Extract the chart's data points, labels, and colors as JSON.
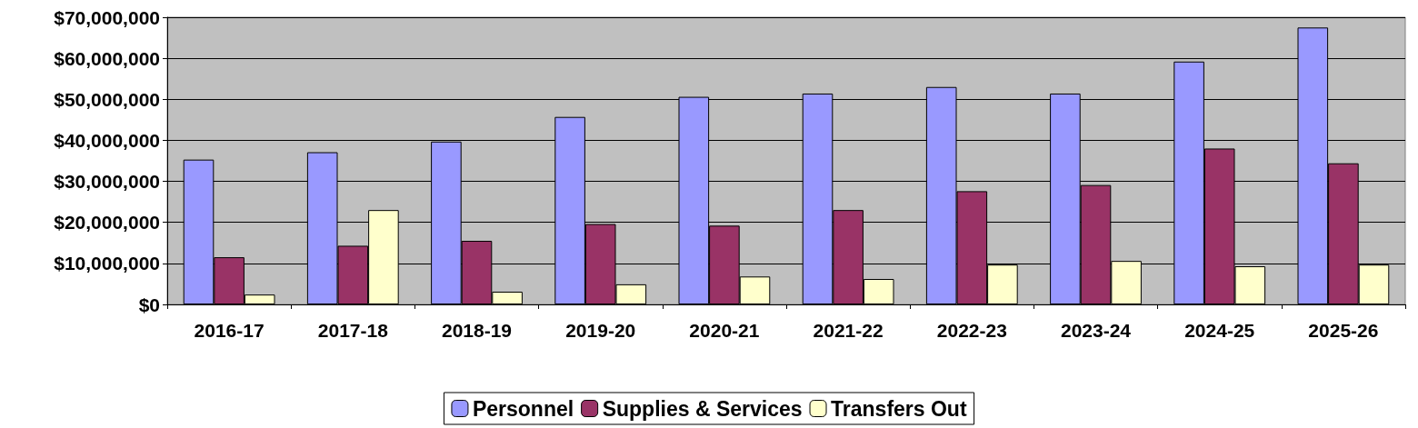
{
  "chart_data": {
    "type": "bar",
    "categories": [
      "2016-17",
      "2017-18",
      "2018-19",
      "2019-20",
      "2020-21",
      "2021-22",
      "2022-23",
      "2023-24",
      "2024-25",
      "2025-26"
    ],
    "series": [
      {
        "name": "Personnel",
        "color": "#9999ff",
        "values": [
          35300000,
          37100000,
          39700000,
          45700000,
          50600000,
          51400000,
          53000000,
          51400000,
          59200000,
          67500000
        ]
      },
      {
        "name": "Supplies & Services",
        "color": "#993366",
        "values": [
          11500000,
          14300000,
          15500000,
          19600000,
          19200000,
          23000000,
          27600000,
          29100000,
          38000000,
          34400000
        ]
      },
      {
        "name": "Transfers Out",
        "color": "#ffffcc",
        "values": [
          2400000,
          23000000,
          3100000,
          4900000,
          6800000,
          6200000,
          9700000,
          10600000,
          9300000,
          9700000
        ]
      }
    ],
    "ylim": [
      0,
      70000000
    ],
    "yticks": [
      {
        "value": 0,
        "label": "$0"
      },
      {
        "value": 10000000,
        "label": "$10,000,000"
      },
      {
        "value": 20000000,
        "label": "$20,000,000"
      },
      {
        "value": 30000000,
        "label": "$30,000,000"
      },
      {
        "value": 40000000,
        "label": "$40,000,000"
      },
      {
        "value": 50000000,
        "label": "$50,000,000"
      },
      {
        "value": 60000000,
        "label": "$60,000,000"
      },
      {
        "value": 70000000,
        "label": "$70,000,000"
      }
    ],
    "grid": "y",
    "legend": "bottom"
  }
}
